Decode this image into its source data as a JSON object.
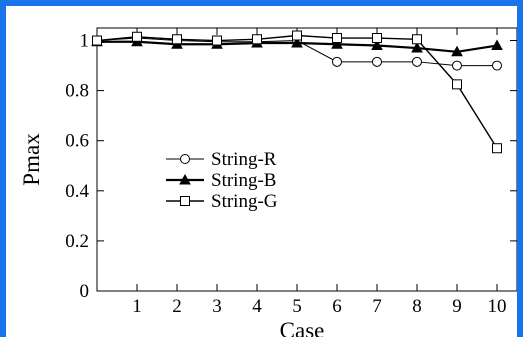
{
  "colors": {
    "border": "#1a73e8",
    "background": "#ffffff",
    "ink": "#000000"
  },
  "chart_data": {
    "type": "line",
    "xlabel": "Case",
    "ylabel": "Pmax",
    "x": [
      0,
      1,
      2,
      3,
      4,
      5,
      6,
      7,
      8,
      9,
      10
    ],
    "x_tick_labels": [
      "1",
      "2",
      "3",
      "4",
      "5",
      "6",
      "7",
      "8",
      "9",
      "10"
    ],
    "y_tick_labels": [
      "0",
      "0.2",
      "0.4",
      "0.6",
      "0.8",
      "1"
    ],
    "xlim": [
      0,
      10.5
    ],
    "ylim": [
      0,
      1.05
    ],
    "grid": false,
    "legend_position": "center-left",
    "series": [
      {
        "name": "String-R",
        "marker": "circle-open",
        "values": [
          1.0,
          1.01,
          1.0,
          0.995,
          0.995,
          1.0,
          0.915,
          0.915,
          0.915,
          0.9,
          0.9
        ]
      },
      {
        "name": "String-B",
        "marker": "triangle-filled",
        "values": [
          0.995,
          0.995,
          0.985,
          0.985,
          0.99,
          0.99,
          0.985,
          0.98,
          0.97,
          0.955,
          0.98
        ]
      },
      {
        "name": "String-G",
        "marker": "square-open",
        "values": [
          1.0,
          1.015,
          1.005,
          1.0,
          1.005,
          1.02,
          1.01,
          1.01,
          1.005,
          0.825,
          0.57
        ]
      }
    ]
  }
}
